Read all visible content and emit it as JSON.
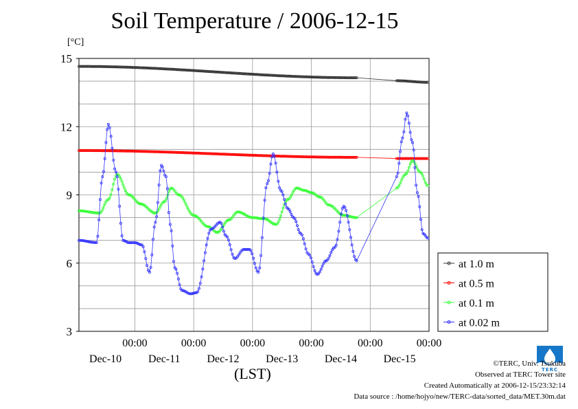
{
  "chart_data": {
    "type": "line",
    "title": "Soil Temperature / 2006-12-15",
    "ylabel": "[°C]",
    "xlabel": "(LST)",
    "ylim": [
      3,
      15
    ],
    "yticks": [
      3,
      6,
      9,
      12,
      15
    ],
    "x_domain_days": [
      -0.95,
      5.0
    ],
    "xticks": [
      {
        "pos": 1,
        "time": "00:00",
        "date": "Dec-10"
      },
      {
        "pos": 2,
        "time": "00:00",
        "date": "Dec-11"
      },
      {
        "pos": 3,
        "time": "00:00",
        "date": "Dec-12"
      },
      {
        "pos": 4,
        "time": "00:00",
        "date": "Dec-13"
      },
      {
        "pos": 5,
        "time": "00:00",
        "date": "Dec-14"
      },
      {
        "pos": 6,
        "time": "00:00",
        "date": "Dec-15"
      }
    ],
    "grid": true,
    "legend_position": "right",
    "series": [
      {
        "name": "at 1.0 m",
        "color": "#333333",
        "segments": [
          {
            "x": [
              -0.95,
              3.77
            ],
            "y": [
              14.65,
              14.15
            ]
          },
          {
            "x": [
              4.45,
              4.98
            ],
            "y": [
              14.02,
              13.95
            ]
          }
        ]
      },
      {
        "name": "at 0.5 m",
        "color": "#ff0000",
        "segments": [
          {
            "x": [
              -0.95,
              3.77
            ],
            "y": [
              10.95,
              10.65
            ]
          },
          {
            "x": [
              4.45,
              4.98
            ],
            "y": [
              10.6,
              10.6
            ]
          }
        ]
      },
      {
        "name": "at 0.1 m",
        "color": "#33ff33",
        "segments": [
          {
            "x": [
              -0.95,
              -0.6,
              -0.45,
              -0.3,
              -0.1,
              0.1,
              0.35,
              0.5,
              0.62,
              0.75,
              1.0,
              1.25,
              1.4,
              1.6,
              1.75,
              2.0,
              2.2,
              2.4,
              2.6,
              2.75,
              2.88,
              3.0,
              3.15,
              3.3,
              3.55,
              3.77
            ],
            "y": [
              8.3,
              8.2,
              8.8,
              9.9,
              9.0,
              8.6,
              8.2,
              8.7,
              9.3,
              9.0,
              8.1,
              7.6,
              7.35,
              7.9,
              8.25,
              8.0,
              7.95,
              7.7,
              8.8,
              9.3,
              9.2,
              9.1,
              8.9,
              8.55,
              8.1,
              8.0
            ]
          },
          {
            "x": [
              4.45,
              4.6,
              4.72,
              4.85,
              4.98
            ],
            "y": [
              9.3,
              9.9,
              10.5,
              10.0,
              9.4
            ]
          }
        ]
      },
      {
        "name": "at 0.02 m",
        "color": "#3333ff",
        "segments": [
          {
            "x": [
              -0.95,
              -0.65,
              -0.55,
              -0.45,
              -0.32,
              -0.2,
              -0.1,
              0.0,
              0.12,
              0.25,
              0.35,
              0.45,
              0.53,
              0.6,
              0.68,
              0.8,
              0.95,
              1.05,
              1.3,
              1.45,
              1.55,
              1.7,
              1.85,
              1.95,
              2.1,
              2.25,
              2.35,
              2.48,
              2.6,
              2.7,
              2.82,
              2.95,
              3.1,
              3.25,
              3.4,
              3.55,
              3.77
            ],
            "y": [
              7.0,
              6.9,
              9.8,
              12.1,
              10.0,
              7.0,
              6.9,
              6.9,
              6.8,
              5.6,
              7.8,
              10.3,
              9.8,
              7.7,
              5.8,
              4.8,
              4.65,
              4.7,
              7.5,
              7.8,
              7.2,
              6.2,
              6.6,
              6.6,
              5.6,
              9.5,
              10.8,
              9.2,
              8.4,
              8.0,
              7.3,
              6.4,
              5.5,
              6.1,
              6.7,
              8.5,
              6.1
            ]
          },
          {
            "x": [
              4.45,
              4.55,
              4.62,
              4.72,
              4.8,
              4.9,
              4.98
            ],
            "y": [
              9.8,
              11.5,
              12.6,
              11.3,
              9.1,
              7.3,
              7.1
            ]
          }
        ]
      }
    ]
  },
  "credits": {
    "copyright": "©TERC, Univ. Tsukuba",
    "observed": "Observed at TERC Tower site",
    "created": "Created Automatically at 2006-12-15/23:32:14",
    "source": "Data source : /home/hojyo/new/TERC-data/sorted_data/MET.30m.dat"
  },
  "logo": {
    "text": "TERC",
    "color": "#1677c8"
  }
}
